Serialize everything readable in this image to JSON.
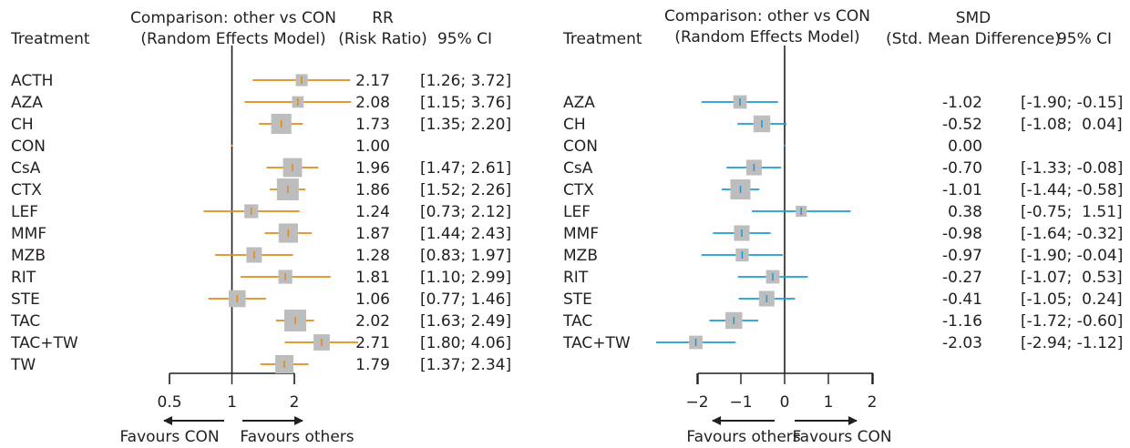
{
  "chart_data": [
    {
      "type": "forest",
      "header": {
        "treatment": "Treatment",
        "comparison_line1": "Comparison: other vs CON",
        "comparison_line2": "(Random Effects Model)",
        "measure_line1": "RR",
        "measure_line2": "(Risk Ratio)",
        "ci": "95% CI"
      },
      "xscale": "log",
      "xlim": [
        0.5,
        2.0
      ],
      "null_value": 1.0,
      "xticks": [
        "0.5",
        "1",
        "2"
      ],
      "xtick_values": [
        0.5,
        1,
        2
      ],
      "favours_left": "Favours CON",
      "favours_right": "Favours others",
      "color": "#E58A17",
      "rows": [
        {
          "treatment": "ACTH",
          "estimate": 2.17,
          "lower": 1.26,
          "upper": 3.72,
          "est_label": "2.17",
          "ci_label": "[1.26; 3.72]",
          "weight": 0.3
        },
        {
          "treatment": "AZA",
          "estimate": 2.08,
          "lower": 1.15,
          "upper": 3.76,
          "est_label": "2.08",
          "ci_label": "[1.15; 3.76]",
          "weight": 0.28
        },
        {
          "treatment": "CH",
          "estimate": 1.73,
          "lower": 1.35,
          "upper": 2.2,
          "est_label": "1.73",
          "ci_label": "[1.35; 2.20]",
          "weight": 0.85
        },
        {
          "treatment": "CON",
          "estimate": 1.0,
          "lower": 1.0,
          "upper": 1.0,
          "est_label": "1.00",
          "ci_label": "",
          "weight": 0
        },
        {
          "treatment": "CsA",
          "estimate": 1.96,
          "lower": 1.47,
          "upper": 2.61,
          "est_label": "1.96",
          "ci_label": "[1.47; 2.61]",
          "weight": 0.75
        },
        {
          "treatment": "CTX",
          "estimate": 1.86,
          "lower": 1.52,
          "upper": 2.26,
          "est_label": "1.86",
          "ci_label": "[1.52; 2.26]",
          "weight": 1.0
        },
        {
          "treatment": "LEF",
          "estimate": 1.24,
          "lower": 0.73,
          "upper": 2.12,
          "est_label": "1.24",
          "ci_label": "[0.73; 2.12]",
          "weight": 0.4
        },
        {
          "treatment": "MMF",
          "estimate": 1.87,
          "lower": 1.44,
          "upper": 2.43,
          "est_label": "1.87",
          "ci_label": "[1.44; 2.43]",
          "weight": 0.78
        },
        {
          "treatment": "MZB",
          "estimate": 1.28,
          "lower": 0.83,
          "upper": 1.97,
          "est_label": "1.28",
          "ci_label": "[0.83; 1.97]",
          "weight": 0.5
        },
        {
          "treatment": "RIT",
          "estimate": 1.81,
          "lower": 1.1,
          "upper": 2.99,
          "est_label": "1.81",
          "ci_label": "[1.10; 2.99]",
          "weight": 0.4
        },
        {
          "treatment": "STE",
          "estimate": 1.06,
          "lower": 0.77,
          "upper": 1.46,
          "est_label": "1.06",
          "ci_label": "[0.77; 1.46]",
          "weight": 0.6
        },
        {
          "treatment": "TAC",
          "estimate": 2.02,
          "lower": 1.63,
          "upper": 2.49,
          "est_label": "2.02",
          "ci_label": "[1.63; 2.49]",
          "weight": 1.0
        },
        {
          "treatment": "TAC+TW",
          "estimate": 2.71,
          "lower": 1.8,
          "upper": 4.06,
          "est_label": "2.71",
          "ci_label": "[1.80; 4.06]",
          "weight": 0.55
        },
        {
          "treatment": "TW",
          "estimate": 1.79,
          "lower": 1.37,
          "upper": 2.34,
          "est_label": "1.79",
          "ci_label": "[1.37; 2.34]",
          "weight": 0.7
        }
      ]
    },
    {
      "type": "forest",
      "header": {
        "treatment": "Treatment",
        "comparison_line1": "Comparison: other vs CON",
        "comparison_line2": "(Random Effects Model)",
        "measure_line1": "SMD",
        "measure_line2": "(Std. Mean Difference)",
        "ci": "95% CI"
      },
      "xscale": "linear",
      "xlim": [
        -2,
        2
      ],
      "null_value": 0,
      "xticks": [
        "−2",
        "−1",
        "0",
        "1",
        "2"
      ],
      "xtick_values": [
        -2,
        -1,
        0,
        1,
        2
      ],
      "favours_left": "Favours others",
      "favours_right": "Favours CON",
      "color": "#1F9BD7",
      "rows": [
        {
          "treatment": "AZA",
          "estimate": -1.02,
          "lower": -1.9,
          "upper": -0.15,
          "est_label": "-1.02",
          "ci_label": "[-1.90; -0.15]",
          "weight": 0.45
        },
        {
          "treatment": "CH",
          "estimate": -0.52,
          "lower": -1.08,
          "upper": 0.04,
          "est_label": "-0.52",
          "ci_label": "[-1.08;  0.04]",
          "weight": 0.7
        },
        {
          "treatment": "CON",
          "estimate": 0.0,
          "lower": 0.0,
          "upper": 0.0,
          "est_label": "0.00",
          "ci_label": "",
          "weight": 0
        },
        {
          "treatment": "CsA",
          "estimate": -0.7,
          "lower": -1.33,
          "upper": -0.08,
          "est_label": "-0.70",
          "ci_label": "[-1.33; -0.08]",
          "weight": 0.6
        },
        {
          "treatment": "CTX",
          "estimate": -1.01,
          "lower": -1.44,
          "upper": -0.58,
          "est_label": "-1.01",
          "ci_label": "[-1.44; -0.58]",
          "weight": 1.0
        },
        {
          "treatment": "LEF",
          "estimate": 0.38,
          "lower": -0.75,
          "upper": 1.51,
          "est_label": "0.38",
          "ci_label": "[-0.75;  1.51]",
          "weight": 0.3
        },
        {
          "treatment": "MMF",
          "estimate": -0.98,
          "lower": -1.64,
          "upper": -0.32,
          "est_label": "-0.98",
          "ci_label": "[-1.64; -0.32]",
          "weight": 0.6
        },
        {
          "treatment": "MZB",
          "estimate": -0.97,
          "lower": -1.9,
          "upper": -0.04,
          "est_label": "-0.97",
          "ci_label": "[-1.90; -0.04]",
          "weight": 0.42
        },
        {
          "treatment": "RIT",
          "estimate": -0.27,
          "lower": -1.07,
          "upper": 0.53,
          "est_label": "-0.27",
          "ci_label": "[-1.07;  0.53]",
          "weight": 0.45
        },
        {
          "treatment": "STE",
          "estimate": -0.41,
          "lower": -1.05,
          "upper": 0.24,
          "est_label": "-0.41",
          "ci_label": "[-1.05;  0.24]",
          "weight": 0.6
        },
        {
          "treatment": "TAC",
          "estimate": -1.16,
          "lower": -1.72,
          "upper": -0.6,
          "est_label": "-1.16",
          "ci_label": "[-1.72; -0.60]",
          "weight": 0.7
        },
        {
          "treatment": "TAC+TW",
          "estimate": -2.03,
          "lower": -2.94,
          "upper": -1.12,
          "est_label": "-2.03",
          "ci_label": "[-2.94; -1.12]",
          "weight": 0.45
        }
      ]
    }
  ]
}
